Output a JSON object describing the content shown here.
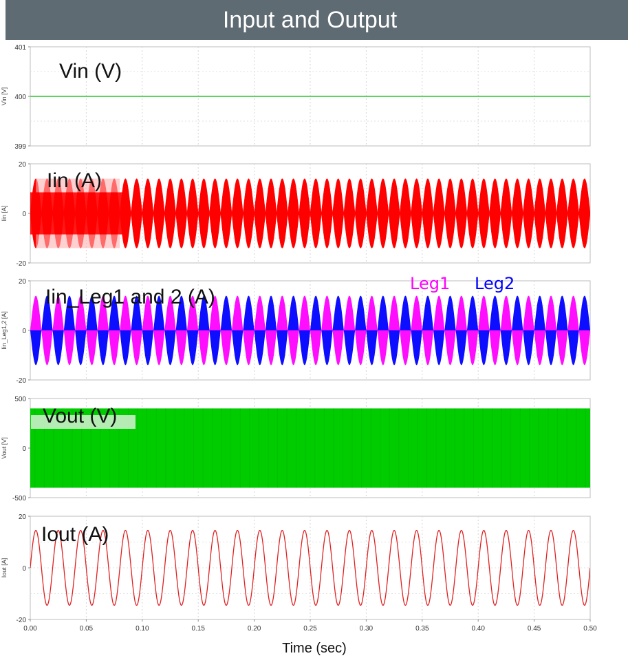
{
  "title": "Input and Output",
  "chart_data": [
    {
      "type": "line",
      "label": "Vin (V)",
      "ylabel": "Vin [V]",
      "ylim": [
        399,
        401
      ],
      "yticks": [
        "401",
        "400",
        "399"
      ],
      "xlim": [
        0,
        0.5
      ],
      "series": [
        {
          "color": "#5fd35f",
          "kind": "constant",
          "value": 400
        }
      ]
    },
    {
      "type": "line",
      "label": "Iin (A)",
      "ylabel": "Iin [A]",
      "ylim": [
        -20,
        20
      ],
      "yticks": [
        "20",
        "0",
        "-20"
      ],
      "xlim": [
        0,
        0.5
      ],
      "series": [
        {
          "color": "#ff0000",
          "kind": "rectified-sine-ripple",
          "amplitude": 14,
          "freq_hz": 100,
          "initial_peak": 8.5
        }
      ]
    },
    {
      "type": "line",
      "label": "Iin_Leg1 and 2 (A)",
      "ylabel": "Iin_Leg1,2 [A]",
      "ylim": [
        -20,
        20
      ],
      "yticks": [
        "20",
        "0",
        "-20"
      ],
      "xlim": [
        0,
        0.5
      ],
      "series": [
        {
          "name": "Leg1",
          "color": "#ff00ff",
          "kind": "half-wave-ripple",
          "amplitude": 14,
          "freq_hz": 50,
          "phase": 0
        },
        {
          "name": "Leg2",
          "color": "#0000ff",
          "kind": "half-wave-ripple",
          "amplitude": 14,
          "freq_hz": 50,
          "phase": 0.5
        }
      ]
    },
    {
      "type": "area",
      "label": "Vout (V)",
      "ylabel": "Vout [V]",
      "ylim": [
        -500,
        500
      ],
      "yticks": [
        "500",
        "0",
        "-500"
      ],
      "xlim": [
        0,
        0.5
      ],
      "series": [
        {
          "color": "#00cc00",
          "kind": "pwm-band",
          "high": 400,
          "low": -400
        }
      ]
    },
    {
      "type": "line",
      "label": "Iout (A)",
      "ylabel": "Iout [A]",
      "ylim": [
        -20,
        20
      ],
      "yticks": [
        "20",
        "0",
        "-20"
      ],
      "xlim": [
        0,
        0.5
      ],
      "xticks": [
        "0.00",
        "0.05",
        "0.10",
        "0.15",
        "0.20",
        "0.25",
        "0.30",
        "0.35",
        "0.40",
        "0.45",
        "0.50"
      ],
      "xlabel": "Time (sec)",
      "series": [
        {
          "color": "#e02020",
          "kind": "sine",
          "amplitude": 14.5,
          "freq_hz": 50
        }
      ]
    }
  ]
}
